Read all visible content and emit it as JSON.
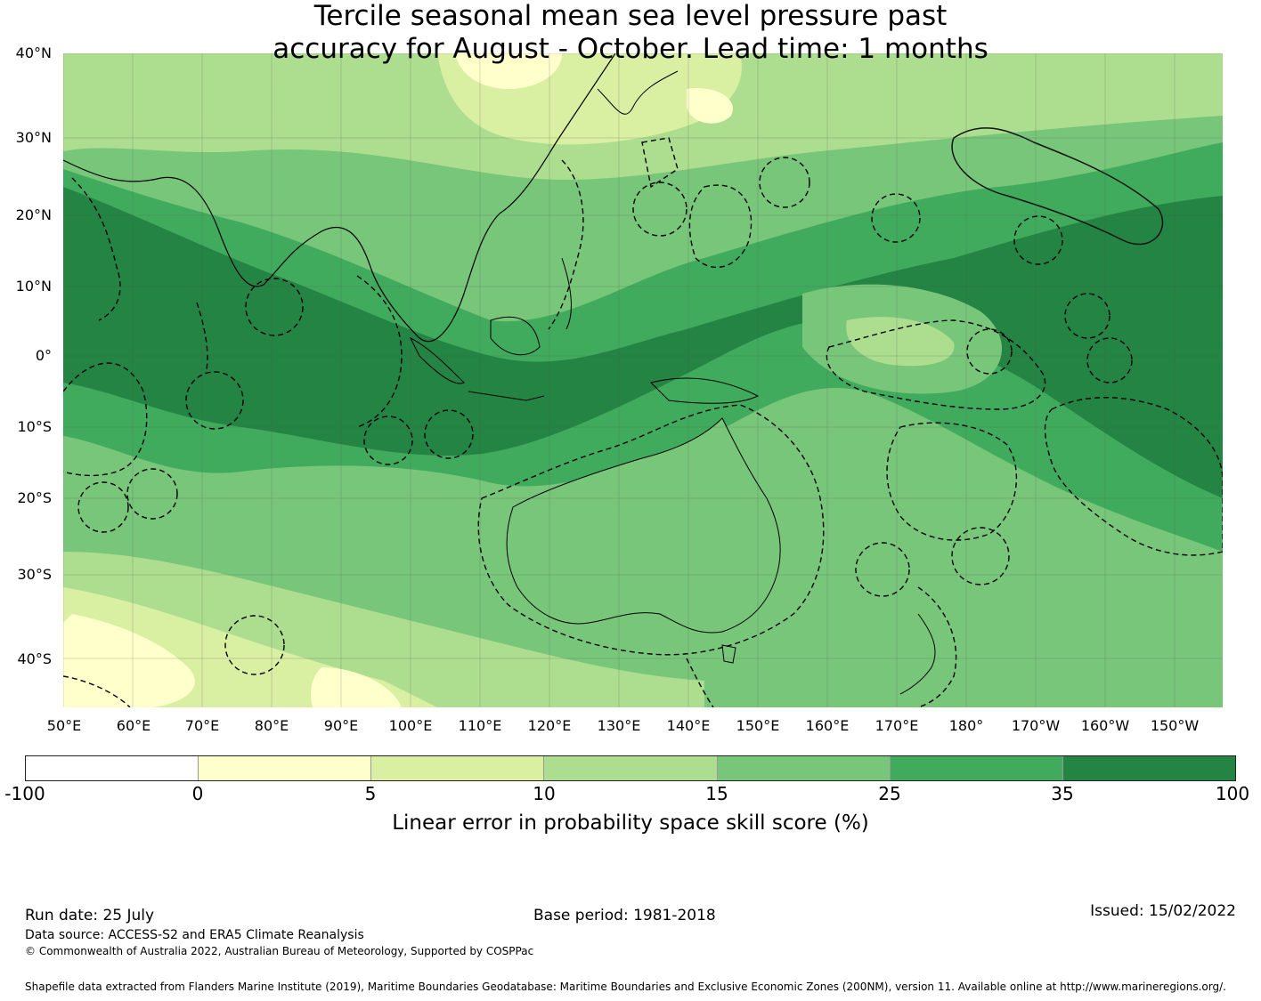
{
  "title": {
    "line1": "Tercile seasonal mean sea level pressure past",
    "line2": "accuracy for August - October. Lead time: 1 months"
  },
  "map": {
    "lat_labels": [
      "40°N",
      "30°N",
      "20°N",
      "10°N",
      "0°",
      "10°S",
      "20°S",
      "30°S",
      "40°S"
    ],
    "lon_labels": [
      "50°E",
      "60°E",
      "70°E",
      "80°E",
      "90°E",
      "100°E",
      "110°E",
      "120°E",
      "130°E",
      "140°E",
      "150°E",
      "160°E",
      "170°E",
      "180°",
      "170°W",
      "160°W",
      "150°W"
    ],
    "boundary_style": "dashed maritime EEZ boundaries",
    "dominant_skill_band": "35-100% over tropical Indian Ocean, Maritime Continent and central Pacific",
    "low_skill_band": "0-5% over southwest Indian Ocean and parts of East Asia"
  },
  "colorbar": {
    "ticks": [
      "-100",
      "0",
      "5",
      "10",
      "15",
      "25",
      "35",
      "100"
    ],
    "colors": [
      "#ffffff",
      "#ffffcc",
      "#d9f0a3",
      "#addd8e",
      "#78c679",
      "#41ab5d",
      "#238443"
    ],
    "label": "Linear error in probability space skill score (%)"
  },
  "footer": {
    "run_date": "Run date: 25 July",
    "base_period": "Base period: 1981-2018",
    "issued": "Issued: 15/02/2022",
    "data_source": "Data source: ACCESS-S2 and ERA5 Climate Reanalysis",
    "copyright": "© Commonwealth of Australia 2022, Australian Bureau of Meteorology, Supported by COSPPac",
    "shapefile": "Shapefile data extracted from Flanders Marine Institute (2019), Maritime Boundaries Geodatabase: Maritime Boundaries and Exclusive Economic Zones (200NM), version 11. Available online at http://www.marineregions.org/."
  }
}
